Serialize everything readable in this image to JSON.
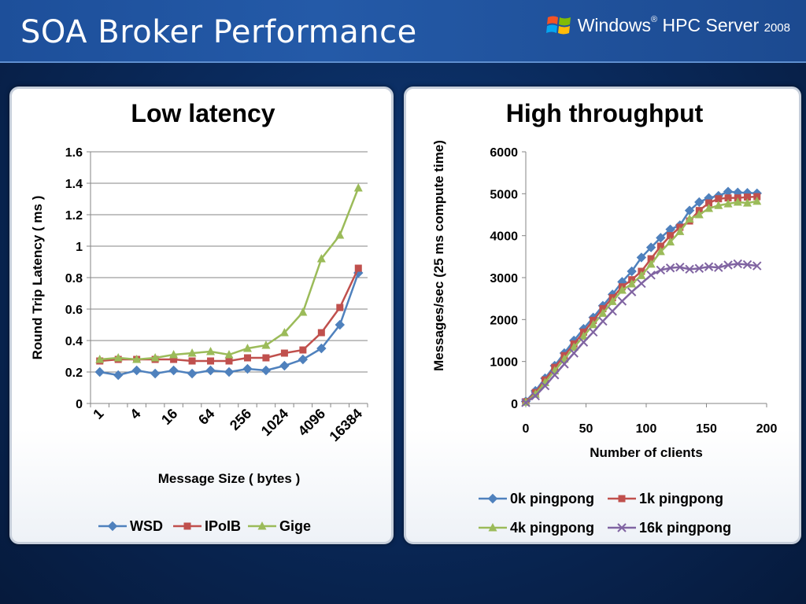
{
  "slide": {
    "title": "SOA Broker Performance",
    "brand": {
      "name": "Windows",
      "product": "HPC Server",
      "version": "2008"
    }
  },
  "chart_data": [
    {
      "type": "line",
      "title": "Low latency",
      "xlabel": "Message Size ( bytes )",
      "ylabel": "Round Trip Latency ( ms )",
      "ylim": [
        0,
        1.6
      ],
      "yticks": [
        "0",
        "0.2",
        "0.4",
        "0.6",
        "0.8",
        "1",
        "1.2",
        "1.4",
        "1.6"
      ],
      "categories": [
        "1",
        "2",
        "4",
        "8",
        "16",
        "32",
        "64",
        "128",
        "256",
        "512",
        "1024",
        "2048",
        "4096",
        "8192",
        "16384"
      ],
      "xtick_labels": [
        "1",
        "4",
        "16",
        "64",
        "256",
        "1024",
        "4096",
        "16384"
      ],
      "grid": true,
      "legend": "bottom",
      "series": [
        {
          "name": "WSD",
          "color": "#4f81bd",
          "marker": "diamond",
          "values": [
            0.2,
            0.18,
            0.21,
            0.19,
            0.21,
            0.19,
            0.21,
            0.2,
            0.22,
            0.21,
            0.24,
            0.28,
            0.35,
            0.5,
            0.83
          ]
        },
        {
          "name": "IPoIB",
          "color": "#c0504d",
          "marker": "square",
          "values": [
            0.27,
            0.28,
            0.28,
            0.28,
            0.28,
            0.27,
            0.27,
            0.27,
            0.29,
            0.29,
            0.32,
            0.34,
            0.45,
            0.61,
            0.86
          ]
        },
        {
          "name": "Gige",
          "color": "#9bbb59",
          "marker": "triangle",
          "values": [
            0.28,
            0.29,
            0.28,
            0.29,
            0.31,
            0.32,
            0.33,
            0.31,
            0.35,
            0.37,
            0.45,
            0.58,
            0.92,
            1.07,
            1.37
          ]
        }
      ]
    },
    {
      "type": "line",
      "title": "High throughput",
      "xlabel": "Number of clients",
      "ylabel": "Messages/sec (25 ms compute time)",
      "xlim": [
        0,
        200
      ],
      "ylim": [
        0,
        6000
      ],
      "xticks": [
        "0",
        "50",
        "100",
        "150",
        "200"
      ],
      "yticks": [
        "0",
        "1000",
        "2000",
        "3000",
        "4000",
        "5000",
        "6000"
      ],
      "grid": false,
      "legend": "bottom",
      "x": [
        0,
        8,
        16,
        24,
        32,
        40,
        48,
        56,
        64,
        72,
        80,
        88,
        96,
        104,
        112,
        120,
        128,
        136,
        144,
        152,
        160,
        168,
        176,
        184,
        192
      ],
      "series": [
        {
          "name": "0k pingpong",
          "color": "#4f81bd",
          "marker": "diamond",
          "values": [
            50,
            300,
            600,
            900,
            1200,
            1500,
            1780,
            2050,
            2330,
            2600,
            2900,
            3150,
            3480,
            3720,
            3950,
            4150,
            4250,
            4600,
            4800,
            4900,
            4950,
            5050,
            5030,
            5020,
            5010
          ]
        },
        {
          "name": "1k pingpong",
          "color": "#c0504d",
          "marker": "square",
          "values": [
            40,
            260,
            560,
            860,
            1140,
            1420,
            1700,
            1980,
            2260,
            2520,
            2780,
            2950,
            3150,
            3450,
            3750,
            4000,
            4200,
            4350,
            4600,
            4780,
            4880,
            4900,
            4900,
            4920,
            4930
          ]
        },
        {
          "name": "4k pingpong",
          "color": "#9bbb59",
          "marker": "triangle",
          "values": [
            30,
            220,
            500,
            780,
            1060,
            1340,
            1600,
            1880,
            2150,
            2430,
            2700,
            2850,
            3050,
            3320,
            3620,
            3850,
            4100,
            4400,
            4500,
            4650,
            4720,
            4760,
            4800,
            4780,
            4820
          ]
        },
        {
          "name": "16k pingpong",
          "color": "#8064a2",
          "marker": "x",
          "values": [
            20,
            180,
            420,
            680,
            940,
            1200,
            1460,
            1700,
            1960,
            2200,
            2440,
            2660,
            2860,
            3060,
            3180,
            3230,
            3250,
            3200,
            3220,
            3260,
            3240,
            3300,
            3330,
            3310,
            3280
          ]
        }
      ]
    }
  ]
}
